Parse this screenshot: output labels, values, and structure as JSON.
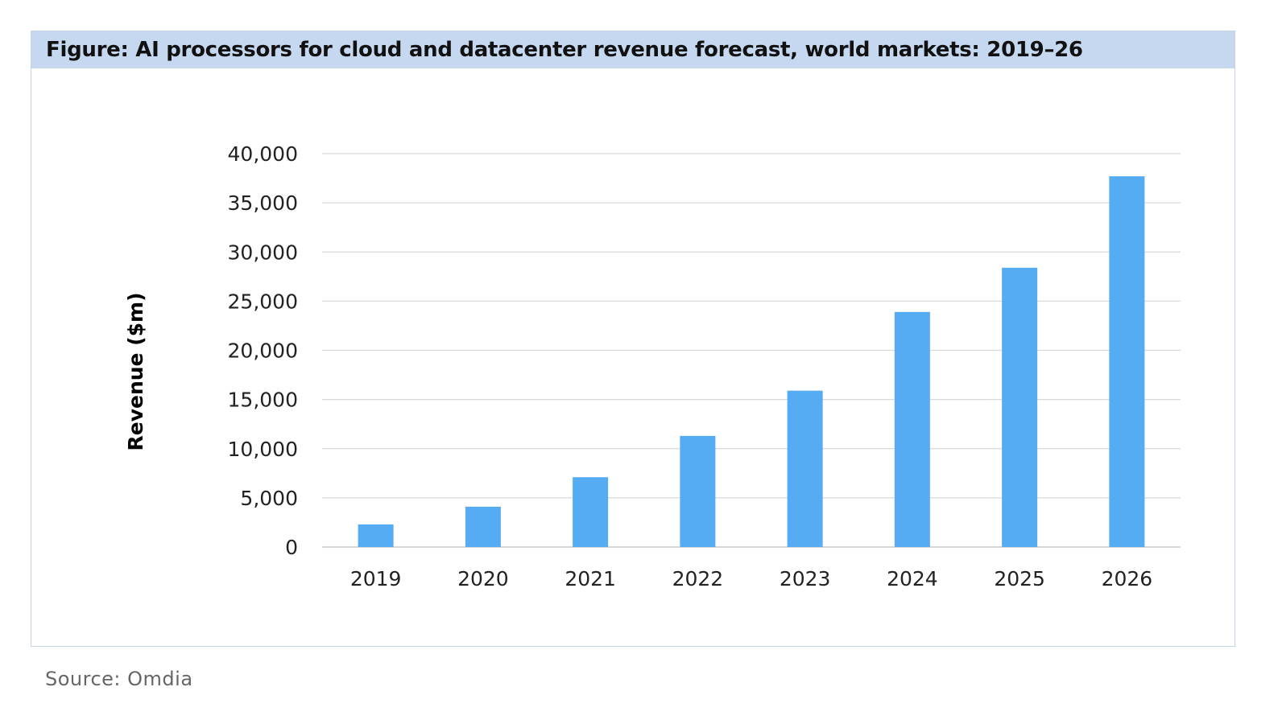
{
  "figure": {
    "title": "Figure: AI processors for cloud and datacenter revenue forecast, world markets: 2019–26",
    "source": "Source: Omdia"
  },
  "colors": {
    "bar": "#55acf2",
    "header_bg": "#c5d8f0",
    "grid": "#d9d9d9"
  },
  "chart_data": {
    "type": "bar",
    "title": "Figure: AI processors for cloud and datacenter revenue forecast, world markets: 2019–26",
    "xlabel": "",
    "ylabel": "Revenue ($m)",
    "categories": [
      "2019",
      "2020",
      "2021",
      "2022",
      "2023",
      "2024",
      "2025",
      "2026"
    ],
    "values": [
      2300,
      4100,
      7100,
      11300,
      15900,
      23900,
      28400,
      37700
    ],
    "ylim": [
      0,
      40000
    ],
    "yticks": [
      0,
      5000,
      10000,
      15000,
      20000,
      25000,
      30000,
      35000,
      40000
    ],
    "ytick_labels": [
      "0",
      "5,000",
      "10,000",
      "15,000",
      "20,000",
      "25,000",
      "30,000",
      "35,000",
      "40,000"
    ],
    "grid": true,
    "legend": "none"
  }
}
